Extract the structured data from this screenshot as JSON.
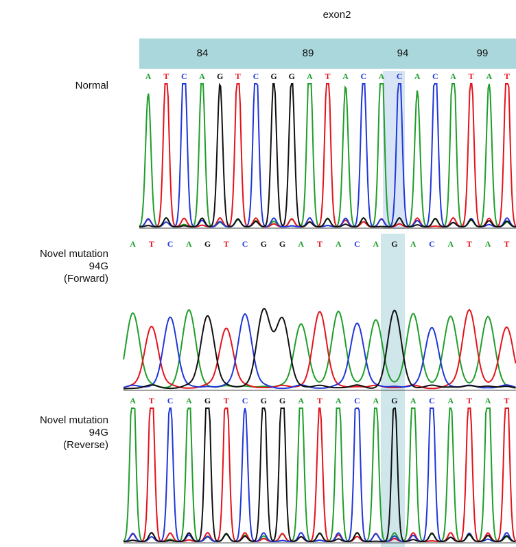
{
  "header": {
    "title": "exon2",
    "positions": [
      84,
      89,
      94,
      99
    ]
  },
  "panels": [
    {
      "label_lines": [
        "Normal"
      ],
      "bases": [
        "A",
        "T",
        "C",
        "A",
        "G",
        "T",
        "C",
        "G",
        "G",
        "A",
        "T",
        "A",
        "C",
        "A",
        "C",
        "A",
        "C",
        "A",
        "T",
        "A",
        "T"
      ]
    },
    {
      "label_lines": [
        "Novel mutation",
        "94G",
        "(Forward)"
      ],
      "bases": [
        "A",
        "T",
        "C",
        "A",
        "G",
        "T",
        "C",
        "G",
        "G",
        "A",
        "T",
        "A",
        "C",
        "A",
        "G",
        "A",
        "C",
        "A",
        "T",
        "A",
        "T"
      ]
    },
    {
      "label_lines": [
        "Novel mutation",
        "94G",
        "(Reverse)"
      ],
      "bases": [
        "A",
        "T",
        "C",
        "A",
        "G",
        "T",
        "C",
        "G",
        "G",
        "A",
        "T",
        "A",
        "C",
        "A",
        "G",
        "A",
        "C",
        "A",
        "T",
        "A",
        "T"
      ]
    }
  ]
}
